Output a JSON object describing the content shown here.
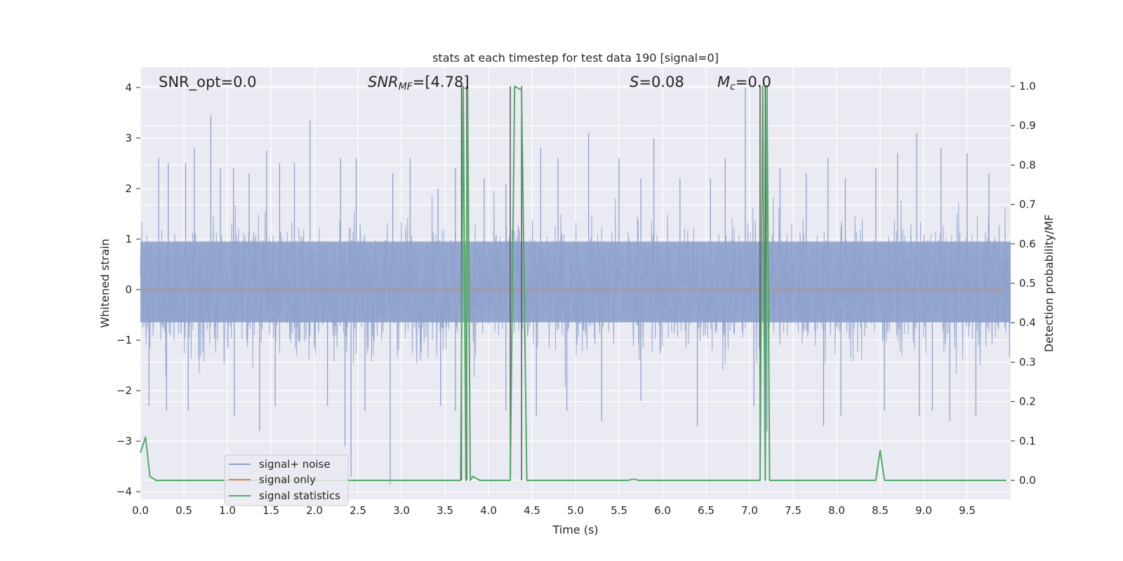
{
  "chart_data": {
    "type": "line",
    "title": "stats at each timestep for test data 190 [signal=0]",
    "xlabel": "Time (s)",
    "ylabel_left": "Whitened strain",
    "ylabel_right": "Detection probability/MF",
    "xlim": [
      0.0,
      10.0
    ],
    "ylim_left": [
      -4.15,
      4.4
    ],
    "ylim_right": [
      -0.048,
      1.048
    ],
    "xticks": [
      "0.0",
      "0.5",
      "1.0",
      "1.5",
      "2.0",
      "2.5",
      "3.0",
      "3.5",
      "4.0",
      "4.5",
      "5.0",
      "5.5",
      "6.0",
      "6.5",
      "7.0",
      "7.5",
      "8.0",
      "8.5",
      "9.0",
      "9.5"
    ],
    "yticks_left": [
      "4",
      "3",
      "2",
      "1",
      "0",
      "−1",
      "−2",
      "−3",
      "−4"
    ],
    "yticks_right": [
      "1.0",
      "0.9",
      "0.8",
      "0.7",
      "0.6",
      "0.5",
      "0.4",
      "0.3",
      "0.2",
      "0.1",
      "0.0"
    ],
    "grid": true,
    "legend_position": "lower-left",
    "annotations": {
      "snr_opt": "SNR_opt=0.0",
      "snr_mf_base": "SNR",
      "snr_mf_sub": "MF",
      "snr_mf_value": "=[4.78]",
      "s_symbol": "S",
      "s_value": "=0.08",
      "mc_base": "M",
      "mc_sub": "c",
      "mc_value": "=0.0"
    },
    "series": [
      {
        "name": "signal+ noise",
        "color": "#8da1cb",
        "axis": "left",
        "kind": "noise",
        "core_band": [
          -0.65,
          0.95
        ],
        "typical_envelope": [
          -1.5,
          1.7
        ],
        "peaks": [
          {
            "x": 0.21,
            "y": 2.6
          },
          {
            "x": 0.32,
            "y": 2.5
          },
          {
            "x": 0.52,
            "y": 2.5
          },
          {
            "x": 0.62,
            "y": 2.8
          },
          {
            "x": 0.81,
            "y": 3.45
          },
          {
            "x": 0.92,
            "y": 2.4
          },
          {
            "x": 1.07,
            "y": 2.4
          },
          {
            "x": 1.25,
            "y": 2.3
          },
          {
            "x": 1.45,
            "y": 2.75
          },
          {
            "x": 1.6,
            "y": 2.5
          },
          {
            "x": 1.77,
            "y": 2.5
          },
          {
            "x": 1.95,
            "y": 3.35
          },
          {
            "x": 2.3,
            "y": 2.6
          },
          {
            "x": 2.48,
            "y": 2.6
          },
          {
            "x": 2.9,
            "y": 2.3
          },
          {
            "x": 3.1,
            "y": 2.6
          },
          {
            "x": 3.42,
            "y": 2.0
          },
          {
            "x": 3.62,
            "y": 2.4
          },
          {
            "x": 3.95,
            "y": 2.2
          },
          {
            "x": 4.2,
            "y": 2.1
          },
          {
            "x": 4.6,
            "y": 2.8
          },
          {
            "x": 4.8,
            "y": 2.6
          },
          {
            "x": 5.15,
            "y": 3.1
          },
          {
            "x": 5.5,
            "y": 2.6
          },
          {
            "x": 5.75,
            "y": 2.2
          },
          {
            "x": 5.9,
            "y": 3.0
          },
          {
            "x": 6.2,
            "y": 2.2
          },
          {
            "x": 6.55,
            "y": 2.2
          },
          {
            "x": 6.72,
            "y": 2.6
          },
          {
            "x": 6.95,
            "y": 4.0
          },
          {
            "x": 7.35,
            "y": 2.4
          },
          {
            "x": 7.65,
            "y": 2.3
          },
          {
            "x": 7.9,
            "y": 2.6
          },
          {
            "x": 8.1,
            "y": 2.2
          },
          {
            "x": 8.45,
            "y": 2.4
          },
          {
            "x": 8.7,
            "y": 2.7
          },
          {
            "x": 8.92,
            "y": 3.1
          },
          {
            "x": 9.2,
            "y": 2.8
          },
          {
            "x": 9.5,
            "y": 2.7
          },
          {
            "x": 9.75,
            "y": 2.3
          }
        ],
        "troughs": [
          {
            "x": 0.1,
            "y": -2.3
          },
          {
            "x": 0.3,
            "y": -2.4
          },
          {
            "x": 0.55,
            "y": -2.4
          },
          {
            "x": 1.08,
            "y": -2.5
          },
          {
            "x": 1.37,
            "y": -2.8
          },
          {
            "x": 1.55,
            "y": -2.3
          },
          {
            "x": 2.15,
            "y": -2.3
          },
          {
            "x": 2.35,
            "y": -3.1
          },
          {
            "x": 2.42,
            "y": -3.7
          },
          {
            "x": 2.58,
            "y": -2.4
          },
          {
            "x": 2.87,
            "y": -3.85
          },
          {
            "x": 3.45,
            "y": -2.3
          },
          {
            "x": 3.62,
            "y": -2.4
          },
          {
            "x": 4.2,
            "y": -2.4
          },
          {
            "x": 4.55,
            "y": -2.5
          },
          {
            "x": 4.9,
            "y": -2.4
          },
          {
            "x": 5.3,
            "y": -2.6
          },
          {
            "x": 5.75,
            "y": -2.2
          },
          {
            "x": 6.4,
            "y": -2.7
          },
          {
            "x": 7.05,
            "y": -2.3
          },
          {
            "x": 7.2,
            "y": -2.8
          },
          {
            "x": 7.85,
            "y": -2.7
          },
          {
            "x": 8.05,
            "y": -2.5
          },
          {
            "x": 8.55,
            "y": -2.4
          },
          {
            "x": 8.95,
            "y": -2.5
          },
          {
            "x": 9.1,
            "y": -2.4
          },
          {
            "x": 9.3,
            "y": -2.6
          },
          {
            "x": 9.6,
            "y": -2.5
          }
        ]
      },
      {
        "name": "signal only",
        "color": "#dd8452",
        "axis": "left",
        "x": [
          0.0,
          10.0
        ],
        "y": [
          0.0,
          0.0
        ]
      },
      {
        "name": "signal statistics",
        "color": "#55a868",
        "axis": "right",
        "x": [
          0.0,
          0.06,
          0.11,
          0.18,
          3.68,
          3.71,
          3.74,
          3.76,
          3.79,
          3.82,
          3.9,
          4.25,
          4.3,
          4.38,
          4.44,
          5.6,
          5.67,
          5.73,
          5.85,
          7.12,
          7.15,
          7.18,
          7.2,
          7.23,
          7.27,
          7.35,
          8.45,
          8.5,
          8.55,
          8.6,
          9.95
        ],
        "y": [
          0.07,
          0.11,
          0.01,
          0.0,
          0.0,
          1.0,
          0.0,
          1.0,
          0.0,
          0.01,
          0.0,
          0.0,
          1.0,
          0.99,
          0.0,
          0.0,
          0.003,
          0.0,
          0.0,
          0.0,
          1.0,
          0.0,
          1.0,
          0.0,
          0.0,
          0.0,
          0.0,
          0.076,
          0.0,
          0.0,
          0.0
        ]
      }
    ],
    "vertical_markers": {
      "color": "#555555",
      "x": [
        3.69,
        3.75,
        4.25,
        4.38,
        7.12,
        7.18
      ]
    }
  }
}
